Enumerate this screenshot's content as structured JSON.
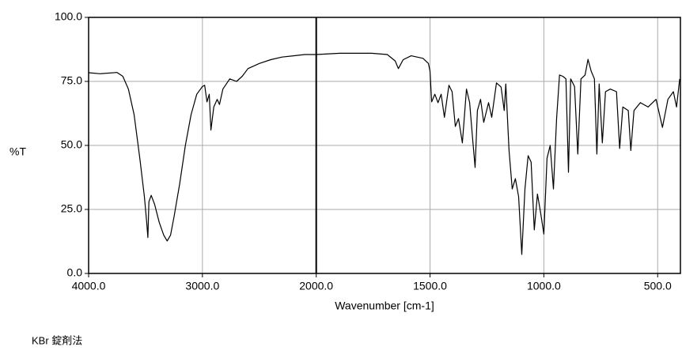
{
  "chart_data": {
    "type": "line",
    "x_label": "Wavenumber [cm-1]",
    "y_label": "%T",
    "footer": "KBr 錠剤法",
    "color": "#000000",
    "grid": true,
    "xlim": [
      4000,
      400
    ],
    "ylim": [
      0,
      100
    ],
    "xticks": [
      {
        "value": 4000,
        "label": "4000.0"
      },
      {
        "value": 3000,
        "label": "3000.0"
      },
      {
        "value": 2000,
        "label": "2000.0"
      },
      {
        "value": 1500,
        "label": "1500.0"
      },
      {
        "value": 1000,
        "label": "1000.0"
      },
      {
        "value": 500,
        "label": "500.0"
      }
    ],
    "yticks": [
      {
        "value": 0,
        "label": "0.0"
      },
      {
        "value": 25,
        "label": "25.0"
      },
      {
        "value": 50,
        "label": "50.0"
      },
      {
        "value": 75,
        "label": "75.0"
      },
      {
        "value": 100,
        "label": "100.0"
      }
    ],
    "x": [
      4000,
      3900,
      3750,
      3700,
      3650,
      3600,
      3550,
      3510,
      3490,
      3479,
      3470,
      3450,
      3420,
      3380,
      3340,
      3310,
      3280,
      3250,
      3200,
      3150,
      3100,
      3050,
      3000,
      2980,
      2960,
      2940,
      2925,
      2900,
      2870,
      2850,
      2820,
      2760,
      2700,
      2650,
      2600,
      2500,
      2400,
      2300,
      2200,
      2100,
      2000,
      1896,
      1757,
      1688,
      1653,
      1639,
      1618,
      1583,
      1531,
      1507,
      1500,
      1493,
      1479,
      1465,
      1451,
      1437,
      1417,
      1403,
      1389,
      1375,
      1358,
      1340,
      1326,
      1313,
      1302,
      1292,
      1278,
      1264,
      1243,
      1229,
      1208,
      1188,
      1174,
      1167,
      1153,
      1139,
      1125,
      1111,
      1097,
      1083,
      1069,
      1056,
      1042,
      1028,
      1014,
      1000,
      986,
      972,
      958,
      944,
      931,
      917,
      903,
      892,
      882,
      865,
      851,
      837,
      819,
      806,
      792,
      778,
      767,
      757,
      743,
      729,
      708,
      681,
      667,
      653,
      629,
      618,
      604,
      576,
      542,
      507,
      479,
      455,
      431,
      417,
      403
    ],
    "values": [
      78.4,
      78,
      78.5,
      77,
      72,
      62,
      45,
      30,
      20,
      14,
      28,
      30.5,
      27,
      20,
      15,
      12.7,
      15,
      22,
      35,
      50,
      62,
      70,
      73,
      73.5,
      67,
      70,
      56,
      65,
      68,
      66,
      72,
      76,
      75,
      77,
      80,
      82,
      83.5,
      84.5,
      85,
      85.5,
      85.5,
      86,
      86,
      85.5,
      83,
      80,
      83.5,
      85,
      84,
      82,
      79,
      67,
      70,
      66.7,
      70,
      61,
      73.5,
      71,
      57.4,
      60.5,
      51,
      72,
      66.7,
      52.8,
      41.4,
      63.6,
      68,
      59,
      66.7,
      61,
      74.4,
      72.8,
      63.6,
      74,
      48,
      33,
      37,
      30,
      7.4,
      33,
      46,
      43.5,
      17,
      31,
      23.5,
      15.4,
      45,
      50,
      33,
      60.5,
      77.5,
      77,
      76,
      39.5,
      76,
      73,
      46.6,
      76,
      77.5,
      83.6,
      79,
      76,
      46.6,
      74,
      51,
      71,
      72,
      71,
      48.8,
      65,
      63.6,
      48,
      63.6,
      66.7,
      65,
      68,
      57,
      68,
      71,
      65,
      76
    ]
  }
}
